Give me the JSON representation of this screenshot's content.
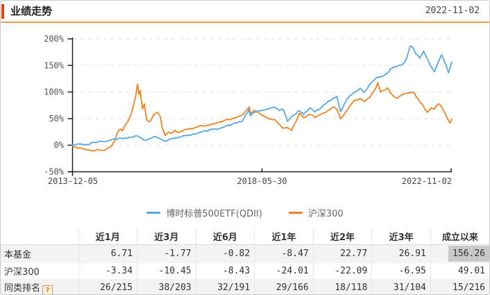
{
  "header": {
    "title": "业绩走势",
    "date": "2022-11-02"
  },
  "colors": {
    "accent_red": "#e9430f",
    "accent_orange_line": "#f79b54",
    "fund_blue": "#55a8e8",
    "index_orange": "#f58220",
    "highlight_cell": "#c9c9c9",
    "grid": "#e2e2e2",
    "axis": "#222222"
  },
  "chart_data": {
    "type": "line",
    "title": "业绩走势",
    "xlabel": "",
    "ylabel": "",
    "unit": "%",
    "ylim": [
      -50,
      200
    ],
    "grid": "horizontal dashed",
    "legend_position": "bottom",
    "y_ticks": [
      "200%",
      "150%",
      "100%",
      "50%",
      "0%",
      "-50%"
    ],
    "y_tick_values": [
      200,
      150,
      100,
      50,
      0,
      -50
    ],
    "x_tick_labels": [
      "2013-12-05",
      "2018-05-30",
      "2022-11-02"
    ],
    "x_range_note": "t = 0 at 2013-12-05, t = 1 at 2022-11-02",
    "series": [
      {
        "name": "博时标普500ETF(QDII)",
        "color": "#55a8e8",
        "end_value": 156.26,
        "points": [
          [
            0,
            0
          ],
          [
            0.02,
            2
          ],
          [
            0.04,
            1
          ],
          [
            0.056,
            5
          ],
          [
            0.08,
            7
          ],
          [
            0.1,
            9
          ],
          [
            0.112,
            12
          ],
          [
            0.13,
            13
          ],
          [
            0.15,
            15
          ],
          [
            0.168,
            18
          ],
          [
            0.183,
            13
          ],
          [
            0.196,
            9
          ],
          [
            0.21,
            14
          ],
          [
            0.22,
            16
          ],
          [
            0.234,
            12
          ],
          [
            0.245,
            8
          ],
          [
            0.26,
            12
          ],
          [
            0.281,
            15
          ],
          [
            0.3,
            18
          ],
          [
            0.32,
            21
          ],
          [
            0.337,
            24
          ],
          [
            0.36,
            28
          ],
          [
            0.393,
            33
          ],
          [
            0.42,
            39
          ],
          [
            0.449,
            46
          ],
          [
            0.466,
            68
          ],
          [
            0.469,
            55
          ],
          [
            0.48,
            62
          ],
          [
            0.503,
            66
          ],
          [
            0.52,
            69
          ],
          [
            0.533,
            72
          ],
          [
            0.545,
            65
          ],
          [
            0.555,
            68
          ],
          [
            0.567,
            45
          ],
          [
            0.58,
            55
          ],
          [
            0.598,
            65
          ],
          [
            0.61,
            58
          ],
          [
            0.626,
            70
          ],
          [
            0.64,
            63
          ],
          [
            0.655,
            70
          ],
          [
            0.673,
            82
          ],
          [
            0.697,
            92
          ],
          [
            0.703,
            75
          ],
          [
            0.707,
            63
          ],
          [
            0.715,
            75
          ],
          [
            0.73,
            92
          ],
          [
            0.745,
            100
          ],
          [
            0.758,
            107
          ],
          [
            0.768,
            99
          ],
          [
            0.786,
            116
          ],
          [
            0.805,
            128
          ],
          [
            0.82,
            130
          ],
          [
            0.842,
            145
          ],
          [
            0.86,
            150
          ],
          [
            0.87,
            152
          ],
          [
            0.88,
            162
          ],
          [
            0.89,
            186
          ],
          [
            0.898,
            183
          ],
          [
            0.905,
            172
          ],
          [
            0.915,
            164
          ],
          [
            0.926,
            177
          ],
          [
            0.94,
            155
          ],
          [
            0.954,
            138
          ],
          [
            0.965,
            158
          ],
          [
            0.973,
            170
          ],
          [
            0.985,
            150
          ],
          [
            0.991,
            136
          ],
          [
            1,
            156.26
          ]
        ]
      },
      {
        "name": "沪深300",
        "color": "#f58220",
        "end_value": 49.01,
        "points": [
          [
            0,
            0
          ],
          [
            0.01,
            -4
          ],
          [
            0.03,
            -7
          ],
          [
            0.056,
            -11
          ],
          [
            0.07,
            -8
          ],
          [
            0.084,
            -10
          ],
          [
            0.095,
            -5
          ],
          [
            0.105,
            0
          ],
          [
            0.112,
            8
          ],
          [
            0.118,
            22
          ],
          [
            0.125,
            30
          ],
          [
            0.132,
            27
          ],
          [
            0.14,
            38
          ],
          [
            0.15,
            50
          ],
          [
            0.158,
            65
          ],
          [
            0.163,
            80
          ],
          [
            0.168,
            95
          ],
          [
            0.172,
            115
          ],
          [
            0.176,
            95
          ],
          [
            0.179,
            103
          ],
          [
            0.185,
            68
          ],
          [
            0.19,
            78
          ],
          [
            0.196,
            48
          ],
          [
            0.205,
            44
          ],
          [
            0.215,
            58
          ],
          [
            0.225,
            62
          ],
          [
            0.232,
            54
          ],
          [
            0.238,
            30
          ],
          [
            0.245,
            18
          ],
          [
            0.255,
            25
          ],
          [
            0.26,
            22
          ],
          [
            0.27,
            28
          ],
          [
            0.281,
            24
          ],
          [
            0.3,
            30
          ],
          [
            0.32,
            32
          ],
          [
            0.337,
            37
          ],
          [
            0.36,
            38
          ],
          [
            0.38,
            42
          ],
          [
            0.393,
            44
          ],
          [
            0.42,
            50
          ],
          [
            0.44,
            55
          ],
          [
            0.449,
            58
          ],
          [
            0.466,
            72
          ],
          [
            0.47,
            60
          ],
          [
            0.48,
            66
          ],
          [
            0.503,
            55
          ],
          [
            0.52,
            50
          ],
          [
            0.533,
            48
          ],
          [
            0.545,
            40
          ],
          [
            0.555,
            32
          ],
          [
            0.567,
            33
          ],
          [
            0.578,
            28
          ],
          [
            0.59,
            45
          ],
          [
            0.598,
            60
          ],
          [
            0.61,
            52
          ],
          [
            0.626,
            58
          ],
          [
            0.64,
            52
          ],
          [
            0.655,
            58
          ],
          [
            0.673,
            65
          ],
          [
            0.69,
            72
          ],
          [
            0.697,
            68
          ],
          [
            0.707,
            50
          ],
          [
            0.72,
            62
          ],
          [
            0.73,
            72
          ],
          [
            0.745,
            85
          ],
          [
            0.758,
            88
          ],
          [
            0.77,
            82
          ],
          [
            0.786,
            92
          ],
          [
            0.8,
            108
          ],
          [
            0.805,
            118
          ],
          [
            0.812,
            100
          ],
          [
            0.82,
            103
          ],
          [
            0.83,
            108
          ],
          [
            0.842,
            96
          ],
          [
            0.855,
            88
          ],
          [
            0.87,
            95
          ],
          [
            0.88,
            98
          ],
          [
            0.898,
            100
          ],
          [
            0.91,
            88
          ],
          [
            0.926,
            72
          ],
          [
            0.935,
            62
          ],
          [
            0.945,
            70
          ],
          [
            0.954,
            68
          ],
          [
            0.965,
            78
          ],
          [
            0.973,
            72
          ],
          [
            0.985,
            55
          ],
          [
            0.995,
            42
          ],
          [
            1,
            49.01
          ]
        ]
      }
    ]
  },
  "table": {
    "columns": [
      "",
      "近1月",
      "近3月",
      "近6月",
      "近1年",
      "近2年",
      "近3年",
      "成立以来"
    ],
    "rows": [
      {
        "label": "本基金",
        "values": [
          "6.71",
          "-1.77",
          "-0.82",
          "-8.47",
          "22.77",
          "26.91",
          "156.26"
        ],
        "highlighted_value": "156.26"
      },
      {
        "label": "沪深300",
        "values": [
          "-3.34",
          "-10.45",
          "-8.43",
          "-24.01",
          "-22.09",
          "-6.95",
          "49.01"
        ]
      },
      {
        "label": "同类排名",
        "help_icon": "?",
        "values": [
          "26/215",
          "38/203",
          "32/191",
          "29/166",
          "18/118",
          "31/104",
          "15/216"
        ]
      }
    ]
  }
}
